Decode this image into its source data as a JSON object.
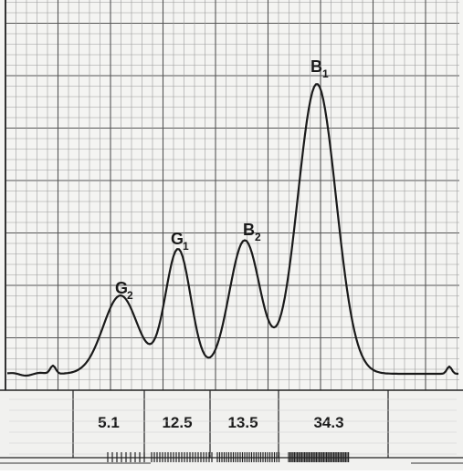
{
  "chart_data": {
    "type": "line",
    "title": "",
    "xlabel": "",
    "ylabel": "",
    "grid": true,
    "peaks": [
      {
        "label": "G",
        "subscript": "2",
        "value": "5.1",
        "x": 132,
        "height": 0.27
      },
      {
        "label": "G",
        "subscript": "1",
        "value": "12.5",
        "x": 195,
        "height": 0.43
      },
      {
        "label": "B",
        "subscript": "2",
        "value": "13.5",
        "x": 268,
        "height": 0.46
      },
      {
        "label": "B",
        "subscript": "1",
        "value": "34.3",
        "x": 347,
        "height": 1.0
      }
    ],
    "values": [
      "5.1",
      "12.5",
      "13.5",
      "34.3"
    ]
  }
}
